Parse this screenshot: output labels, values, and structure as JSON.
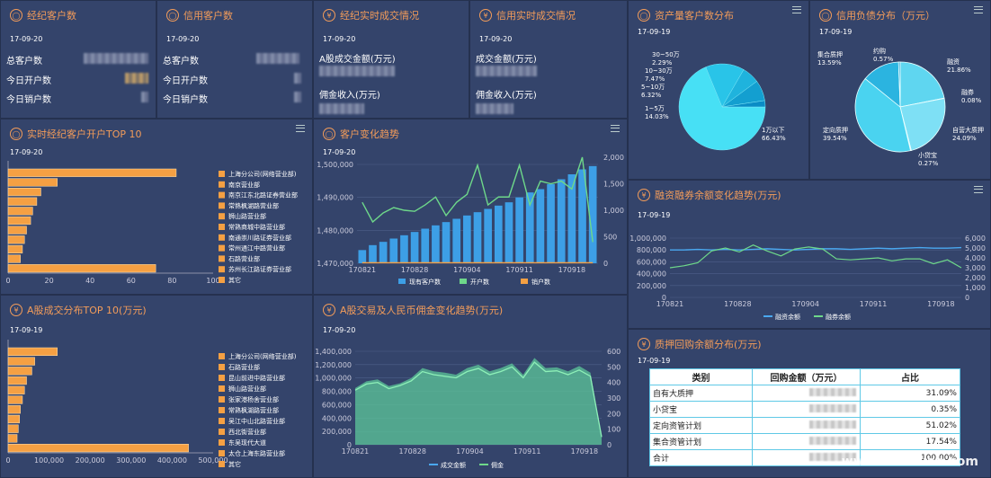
{
  "kpi": [
    {
      "title": "经纪客户数",
      "date": "17-09-20",
      "rows": [
        "总客户数",
        "今日开户数",
        "今日销户数"
      ]
    },
    {
      "title": "信用客户数",
      "date": "17-09-20",
      "rows": [
        "总客户数",
        "今日开户数",
        "今日销户数"
      ]
    },
    {
      "title": "经纪实时成交情况",
      "date": "17-09-20",
      "rows": [
        "A股成交金额(万元)",
        "佣金收入(万元)"
      ]
    },
    {
      "title": "信用实时成交情况",
      "date": "17-09-20",
      "rows": [
        "成交金额(万元)",
        "佣金收入(万元)"
      ]
    }
  ],
  "asset_dist": {
    "title": "资产量客户数分布",
    "date": "17-09-19",
    "chart_data": {
      "type": "pie",
      "categories": [
        "1万以下",
        "1~5万",
        "5~10万",
        "10~30万",
        "30~50万"
      ],
      "values": [
        66.43,
        14.03,
        6.32,
        7.47,
        2.29
      ],
      "labels": [
        "1万以下\n66.43%",
        "1~5万\n14.03%",
        "5~10万\n6.32%",
        "10~30万\n7.47%",
        "30~50万\n2.29%"
      ]
    }
  },
  "credit_dist": {
    "title": "信用负债分布（万元）",
    "date": "17-09-19",
    "chart_data": {
      "type": "pie",
      "categories": [
        "融资",
        "融券",
        "自营大质押",
        "小贷宝",
        "定向质押",
        "集合质押",
        "约购"
      ],
      "values": [
        21.86,
        0.08,
        24.09,
        0.27,
        39.54,
        13.59,
        0.57
      ]
    }
  },
  "top10": {
    "title": "实时经纪客户开户TOP 10",
    "date": "17-09-20",
    "chart_data": {
      "type": "bar",
      "categories": [
        "上海分公司(网络营业部)",
        "南京营业部",
        "南京江东北路证券营业部",
        "常熟枫湖路营业部",
        "狮山路营业部",
        "常熟商城中路营业部",
        "南通崇川路证券营业部",
        "常州通江中路营业部",
        "石路营业部",
        "苏州长江路证券营业部",
        "其它"
      ],
      "values": [
        82,
        24,
        16,
        14,
        12,
        11,
        9,
        8,
        7,
        6,
        72
      ],
      "xticks": [
        "0",
        "20",
        "40",
        "60",
        "80",
        "100"
      ],
      "xlim": [
        0,
        100
      ]
    }
  },
  "cust_trend": {
    "title": "客户变化趋势",
    "date": "17-09-20",
    "chart_data": {
      "type": "bar+line",
      "x": [
        "170821",
        "170822",
        "170823",
        "170824",
        "170825",
        "170828",
        "170829",
        "170830",
        "170831",
        "170901",
        "170904",
        "170905",
        "170906",
        "170907",
        "170908",
        "170911",
        "170912",
        "170913",
        "170914",
        "170915",
        "170918",
        "170919",
        "170920"
      ],
      "xticks": [
        "170821",
        "170828",
        "170904",
        "170911",
        "170918"
      ],
      "yleft": [
        "1,470,000",
        "1,480,000",
        "1,490,000",
        "1,500,000"
      ],
      "yright": [
        "0",
        "500",
        "1,000",
        "1,500",
        "2,000"
      ],
      "series": [
        {
          "name": "现有客户数",
          "values": [
            1474000,
            1475500,
            1476500,
            1477500,
            1478500,
            1479500,
            1480500,
            1481500,
            1482500,
            1483500,
            1484500,
            1485500,
            1486500,
            1487500,
            1488500,
            1490000,
            1491500,
            1492500,
            1494000,
            1495500,
            1497000,
            1498500,
            1499500
          ]
        },
        {
          "name": "开户数",
          "values": [
            1150,
            780,
            950,
            1050,
            1000,
            980,
            1100,
            1250,
            900,
            1150,
            1300,
            1850,
            1100,
            1250,
            1250,
            1850,
            1100,
            1550,
            1500,
            1550,
            1400,
            2000,
            400
          ]
        },
        {
          "name": "销户数",
          "values": [
            10,
            10,
            10,
            10,
            10,
            10,
            10,
            10,
            10,
            10,
            10,
            10,
            10,
            10,
            10,
            10,
            10,
            10,
            10,
            10,
            10,
            10,
            10
          ]
        }
      ]
    }
  },
  "margin": {
    "title": "融资融券余额变化趋势(万元)",
    "date": "17-09-19",
    "chart_data": {
      "type": "line",
      "xticks": [
        "170821",
        "170828",
        "170904",
        "170911",
        "170918"
      ],
      "yleft": [
        "0",
        "200,000",
        "400,000",
        "600,000",
        "800,000",
        "1,000,000"
      ],
      "yright": [
        "0",
        "1,000",
        "2,000",
        "3,000",
        "4,000",
        "5,000",
        "6,000"
      ],
      "series": [
        {
          "name": "融资余额",
          "values": [
            800000,
            800000,
            810000,
            800000,
            810000,
            800000,
            810000,
            820000,
            810000,
            800000,
            810000,
            820000,
            820000,
            810000,
            820000,
            830000,
            820000,
            830000,
            840000,
            830000,
            830000,
            840000
          ]
        },
        {
          "name": "融券余额",
          "values": [
            3000,
            3200,
            3500,
            4700,
            5000,
            4600,
            5300,
            4700,
            4200,
            4900,
            5100,
            4900,
            3900,
            3800,
            3900,
            4000,
            3700,
            3900,
            3900,
            3400,
            3800,
            3000
          ]
        }
      ]
    }
  },
  "ashare": {
    "title": "A股成交分布TOP 10(万元)",
    "date": "17-09-19",
    "chart_data": {
      "type": "bar",
      "categories": [
        "上海分公司(网络营业部)",
        "石路营业部",
        "昆山前进中路营业部",
        "狮山路营业部",
        "张家港杨舍营业部",
        "常熟枫湖路营业部",
        "吴江中山北路营业部",
        "西北街营业部",
        "东吴现代大道",
        "太仓上海东路营业部",
        "其它"
      ],
      "values": [
        120000,
        65000,
        58000,
        45000,
        40000,
        35000,
        30000,
        28000,
        25000,
        22000,
        440000
      ],
      "xticks": [
        "0",
        "100,000",
        "200,000",
        "300,000",
        "400,000",
        "500,000"
      ],
      "xlim": [
        0,
        500000
      ]
    }
  },
  "commission": {
    "title": "A股交易及人民币佣金变化趋势(万元)",
    "date": "17-09-20",
    "chart_data": {
      "type": "area+line",
      "xticks": [
        "170821",
        "170828",
        "170904",
        "170911",
        "170918"
      ],
      "yleft": [
        "0",
        "200,000",
        "400,000",
        "600,000",
        "800,000",
        "1,000,000",
        "1,200,000",
        "1,400,000"
      ],
      "yright": [
        "0",
        "100",
        "200",
        "300",
        "400",
        "500",
        "600"
      ],
      "series": [
        {
          "name": "成交金额",
          "values": [
            850000,
            950000,
            980000,
            880000,
            920000,
            1000000,
            1150000,
            1100000,
            1080000,
            1050000,
            1150000,
            1200000,
            1100000,
            1150000,
            1220000,
            1050000,
            1300000,
            1150000,
            1160000,
            1100000,
            1180000,
            1080000,
            120000
          ]
        },
        {
          "name": "佣金",
          "values": [
            350,
            390,
            400,
            360,
            380,
            410,
            470,
            450,
            440,
            430,
            470,
            490,
            450,
            470,
            500,
            430,
            530,
            470,
            475,
            450,
            480,
            440,
            50
          ]
        }
      ]
    }
  },
  "pledge": {
    "title": "质押回购余额分布(万元)",
    "date": "17-09-19",
    "table": {
      "headers": [
        "类别",
        "回购金额（万元）",
        "占比"
      ],
      "rows": [
        [
          "自有大质押",
          "31.09%"
        ],
        [
          "小贷宝",
          "0.35%"
        ],
        [
          "定向资管计划",
          "51.02%"
        ],
        [
          "集合资管计划",
          "17.54%"
        ],
        [
          "合计",
          "100.00%"
        ]
      ]
    }
  },
  "watermark": "www.liefutuan.com"
}
